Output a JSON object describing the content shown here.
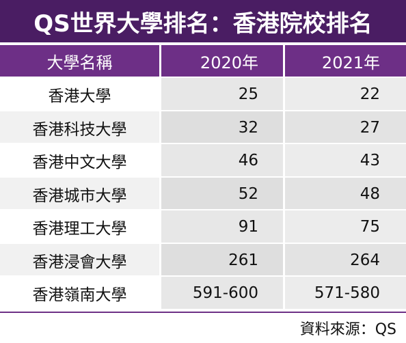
{
  "title": "QS世界大學排名：香港院校排名",
  "table": {
    "headers": [
      "大學名稱",
      "2020年",
      "2021年"
    ],
    "rows": [
      {
        "name": "香港大學",
        "y2020": "25",
        "y2021": "22"
      },
      {
        "name": "香港科技大學",
        "y2020": "32",
        "y2021": "27"
      },
      {
        "name": "香港中文大學",
        "y2020": "46",
        "y2021": "43"
      },
      {
        "name": "香港城市大學",
        "y2020": "52",
        "y2021": "48"
      },
      {
        "name": "香港理工大學",
        "y2020": "91",
        "y2021": "75"
      },
      {
        "name": "香港浸會大學",
        "y2020": "261",
        "y2021": "264"
      },
      {
        "name": "香港嶺南大學",
        "y2020": "591-600",
        "y2021": "571-580"
      }
    ]
  },
  "source": "資料來源：QS",
  "colors": {
    "title_bg": "#4a1d63",
    "header_bg": "#6d2f86",
    "text": "#111111"
  }
}
